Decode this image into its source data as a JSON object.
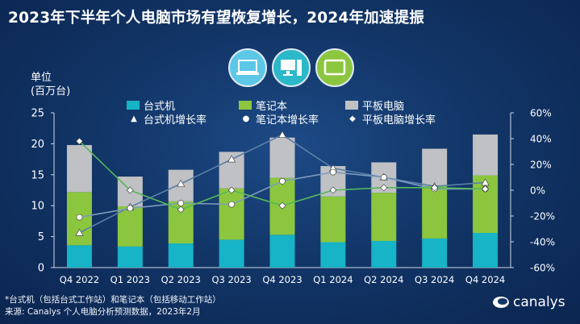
{
  "title": "2023年下半年个人电脑市场有望恢复增长，2024年加速提振",
  "icons": [
    {
      "name": "laptop-icon",
      "color": "#5cc7e6"
    },
    {
      "name": "desktop-icon",
      "color": "#2bb8c8"
    },
    {
      "name": "tablet-icon",
      "color": "#8cc63f"
    }
  ],
  "y_left_label_line1": "单位",
  "y_left_label_line2": "(百万台)",
  "legend": {
    "desktop": "台式机",
    "notebook": "笔记本",
    "tablet": "平板电脑",
    "desktop_growth": "台式机增长率",
    "notebook_growth": "笔记本增长率",
    "tablet_growth": "平板电脑增长率"
  },
  "footnote1": "*台式机（包括台式工作站）和笔记本（包括移动工作站）",
  "footnote2": "来源: Canalys 个人电脑分析预测数据，2023年2月",
  "brand": "canalys",
  "chart_data": {
    "type": "bar",
    "stacked": true,
    "categories": [
      "Q4 2022",
      "Q1 2023",
      "Q2 2023",
      "Q3 2023",
      "Q4 2023",
      "Q1 2024",
      "Q2 2024",
      "Q3 2024",
      "Q4 2024"
    ],
    "series": [
      {
        "name": "台式机",
        "color": "#17b3c6",
        "values": [
          3.6,
          3.4,
          3.9,
          4.5,
          5.3,
          4.1,
          4.3,
          4.7,
          5.6
        ]
      },
      {
        "name": "笔记本",
        "color": "#8cc63f",
        "values": [
          8.6,
          6.5,
          6.8,
          8.3,
          9.2,
          7.4,
          7.8,
          8.5,
          9.3
        ]
      },
      {
        "name": "平板电脑",
        "color": "#bfc1c4",
        "values": [
          7.6,
          4.8,
          5.1,
          5.9,
          6.5,
          4.9,
          4.9,
          6.0,
          6.6
        ]
      }
    ],
    "growth_series": [
      {
        "name": "台式机增长率",
        "color": "#5b7fa8",
        "marker": "triangle",
        "values": [
          -33,
          -13,
          5,
          24,
          43,
          17,
          10,
          3,
          6
        ]
      },
      {
        "name": "笔记本增长率",
        "color": "#7d9cbd",
        "marker": "dot",
        "values": [
          -21,
          -14,
          -10,
          -11,
          7,
          14,
          10,
          1,
          1
        ]
      },
      {
        "name": "平板电脑增长率",
        "color": "#55b85a",
        "marker": "diamond",
        "values": [
          38,
          0,
          -15,
          0,
          -12,
          0,
          2,
          2,
          1
        ]
      }
    ],
    "ylim_left": [
      0,
      25
    ],
    "yticks_left": [
      0,
      5,
      10,
      15,
      20,
      25
    ],
    "ylim_right": [
      -60,
      60
    ],
    "yticks_right_labels": [
      "-60%",
      "-40%",
      "-20%",
      "0%",
      "20%",
      "40%",
      "60%"
    ],
    "yticks_right_values": [
      -60,
      -40,
      -20,
      0,
      20,
      40,
      60
    ],
    "grid": false,
    "legend_position": "top"
  }
}
